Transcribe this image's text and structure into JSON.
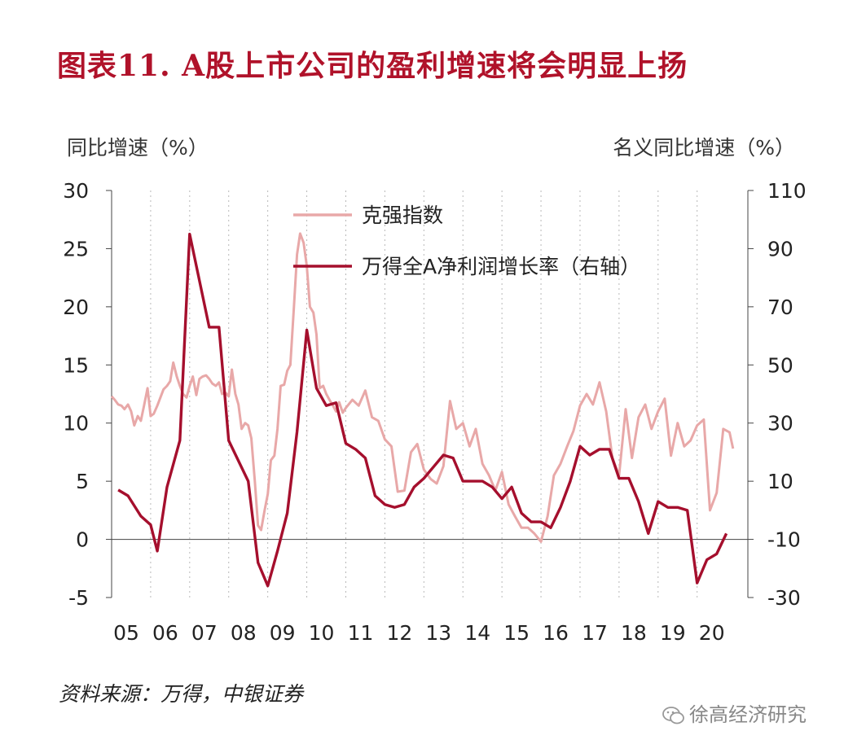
{
  "header": {
    "title": "图表11.  A股上市公司的盈利增速将会明显上扬"
  },
  "units": {
    "left": "同比增速（%）",
    "right": "名义同比增速（%）"
  },
  "source": "资料来源：万得，中银证券",
  "watermark": {
    "text": "徐高经济研究",
    "icon": "wechat-icon"
  },
  "colors": {
    "title": "#b0122a",
    "series1": "#e8a8a8",
    "series2": "#a50f2d"
  },
  "chart_data": {
    "type": "line",
    "x_tick_labels": [
      "05",
      "06",
      "07",
      "08",
      "09",
      "10",
      "11",
      "12",
      "13",
      "14",
      "15",
      "16",
      "17",
      "18",
      "19",
      "20"
    ],
    "y_left": {
      "ticks": [
        30,
        25,
        20,
        15,
        10,
        5,
        0,
        -5
      ],
      "ylim": [
        -5,
        30
      ]
    },
    "y_right": {
      "ticks": [
        110,
        90,
        70,
        50,
        30,
        10,
        -10,
        -30
      ],
      "ylim": [
        -30,
        110
      ]
    },
    "grid": {
      "vertical_dotted": true,
      "horizontal": false
    },
    "legend": {
      "position": "top-center"
    },
    "series": [
      {
        "name": "克强指数",
        "axis": "left",
        "x": [
          2005.0,
          2005.08,
          2005.17,
          2005.25,
          2005.33,
          2005.42,
          2005.5,
          2005.58,
          2005.67,
          2005.75,
          2005.83,
          2005.92,
          2006.0,
          2006.08,
          2006.17,
          2006.25,
          2006.33,
          2006.42,
          2006.5,
          2006.58,
          2006.67,
          2006.75,
          2006.83,
          2006.92,
          2007.0,
          2007.08,
          2007.17,
          2007.25,
          2007.33,
          2007.42,
          2007.5,
          2007.58,
          2007.67,
          2007.75,
          2007.83,
          2007.92,
          2008.0,
          2008.08,
          2008.17,
          2008.25,
          2008.33,
          2008.42,
          2008.5,
          2008.58,
          2008.67,
          2008.75,
          2008.83,
          2008.92,
          2009.0,
          2009.08,
          2009.17,
          2009.25,
          2009.33,
          2009.42,
          2009.5,
          2009.58,
          2009.67,
          2009.75,
          2009.83,
          2009.92,
          2010.0,
          2010.08,
          2010.17,
          2010.25,
          2010.33,
          2010.42,
          2010.5,
          2010.58,
          2010.67,
          2010.75,
          2010.83,
          2010.92,
          2011.0,
          2011.17,
          2011.33,
          2011.5,
          2011.67,
          2011.83,
          2012.0,
          2012.17,
          2012.33,
          2012.5,
          2012.67,
          2012.83,
          2013.0,
          2013.17,
          2013.33,
          2013.5,
          2013.67,
          2013.83,
          2014.0,
          2014.17,
          2014.33,
          2014.5,
          2014.67,
          2014.83,
          2015.0,
          2015.17,
          2015.33,
          2015.5,
          2015.67,
          2015.83,
          2016.0,
          2016.17,
          2016.33,
          2016.5,
          2016.67,
          2016.83,
          2017.0,
          2017.17,
          2017.33,
          2017.5,
          2017.67,
          2017.83,
          2018.0,
          2018.17,
          2018.33,
          2018.5,
          2018.67,
          2018.83,
          2019.0,
          2019.17,
          2019.33,
          2019.5,
          2019.67,
          2019.83,
          2020.0,
          2020.17,
          2020.33,
          2020.5,
          2020.67,
          2020.83,
          2020.92
        ],
        "values": [
          12.3,
          12.0,
          11.6,
          11.5,
          11.2,
          11.6,
          11.0,
          9.8,
          10.6,
          10.2,
          11.5,
          13.0,
          10.6,
          10.8,
          11.5,
          12.2,
          12.9,
          13.2,
          13.6,
          15.2,
          14.0,
          13.2,
          12.5,
          12.2,
          13.2,
          14.0,
          12.4,
          13.8,
          14.0,
          14.1,
          13.8,
          13.4,
          13.2,
          13.5,
          12.5,
          12.6,
          12.3,
          14.6,
          12.5,
          11.6,
          9.5,
          10.0,
          9.8,
          8.7,
          5.0,
          1.2,
          0.8,
          2.5,
          3.9,
          6.8,
          7.2,
          9.5,
          13.2,
          13.3,
          14.5,
          15.0,
          20.0,
          24.5,
          26.3,
          25.5,
          23.5,
          20.0,
          19.5,
          17.6,
          13.0,
          13.2,
          12.5,
          12.0,
          11.5,
          11.0,
          11.8,
          10.9,
          11.3,
          12.0,
          11.5,
          12.8,
          10.5,
          10.2,
          8.6,
          8.0,
          4.1,
          4.2,
          7.5,
          8.2,
          6.0,
          5.2,
          4.8,
          6.3,
          11.9,
          9.5,
          10.0,
          8.0,
          9.5,
          6.5,
          5.5,
          4.2,
          5.8,
          3.0,
          2.0,
          1.0,
          1.0,
          0.5,
          -0.2,
          2.0,
          5.5,
          6.5,
          8.0,
          9.3,
          11.5,
          12.5,
          11.6,
          13.5,
          11.0,
          7.0,
          5.5,
          11.2,
          7.0,
          10.5,
          11.6,
          9.5,
          11.0,
          12.1,
          7.2,
          10.0,
          8.0,
          8.5,
          9.8,
          10.3,
          2.5,
          4.0,
          9.5,
          9.2,
          7.8
        ]
      },
      {
        "name": "万得全A净利润增长率（右轴）",
        "axis": "right",
        "x": [
          2005.17,
          2005.42,
          2005.75,
          2006.0,
          2006.17,
          2006.42,
          2006.75,
          2007.0,
          2007.25,
          2007.5,
          2007.75,
          2008.0,
          2008.25,
          2008.5,
          2008.75,
          2009.0,
          2009.25,
          2009.5,
          2009.75,
          2010.0,
          2010.25,
          2010.5,
          2010.75,
          2011.0,
          2011.25,
          2011.5,
          2011.75,
          2012.0,
          2012.25,
          2012.5,
          2012.75,
          2013.0,
          2013.25,
          2013.5,
          2013.75,
          2014.0,
          2014.25,
          2014.5,
          2014.75,
          2015.0,
          2015.25,
          2015.5,
          2015.75,
          2016.0,
          2016.25,
          2016.5,
          2016.75,
          2017.0,
          2017.25,
          2017.5,
          2017.75,
          2018.0,
          2018.25,
          2018.5,
          2018.75,
          2019.0,
          2019.25,
          2019.5,
          2019.75,
          2020.0,
          2020.25,
          2020.5,
          2020.75
        ],
        "values": [
          7,
          5,
          -2,
          -5,
          -14,
          8,
          24,
          95,
          79,
          63,
          63,
          24,
          17,
          10,
          -18,
          -26,
          -14,
          -1,
          27,
          62,
          42,
          36,
          37,
          23,
          21,
          18,
          5,
          2,
          1,
          2,
          8,
          11,
          15,
          19,
          18,
          10,
          10,
          10,
          8,
          4,
          8,
          -1,
          -4,
          -4,
          -6,
          1,
          10,
          22,
          19,
          21,
          21,
          11,
          11,
          3,
          -8,
          3,
          1,
          1,
          0,
          -25,
          -17,
          -15,
          -8
        ]
      }
    ]
  }
}
